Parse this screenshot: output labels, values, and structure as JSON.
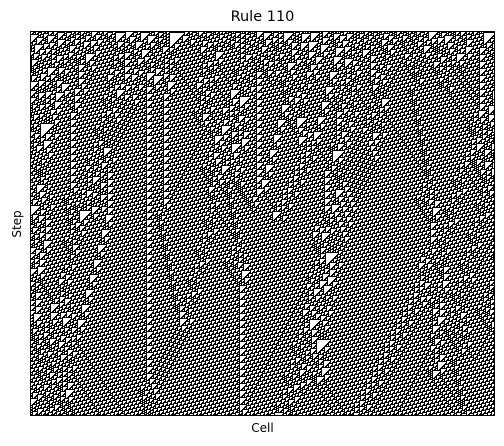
{
  "chart_data": {
    "type": "heatmap",
    "title": "Rule 110",
    "xlabel": "Cell",
    "ylabel": "Step",
    "rule": 110,
    "colors": {
      "alive": "#000000",
      "dead": "#ffffff"
    },
    "x_ticks": [],
    "y_ticks": [],
    "grid": false,
    "legend": "none"
  }
}
